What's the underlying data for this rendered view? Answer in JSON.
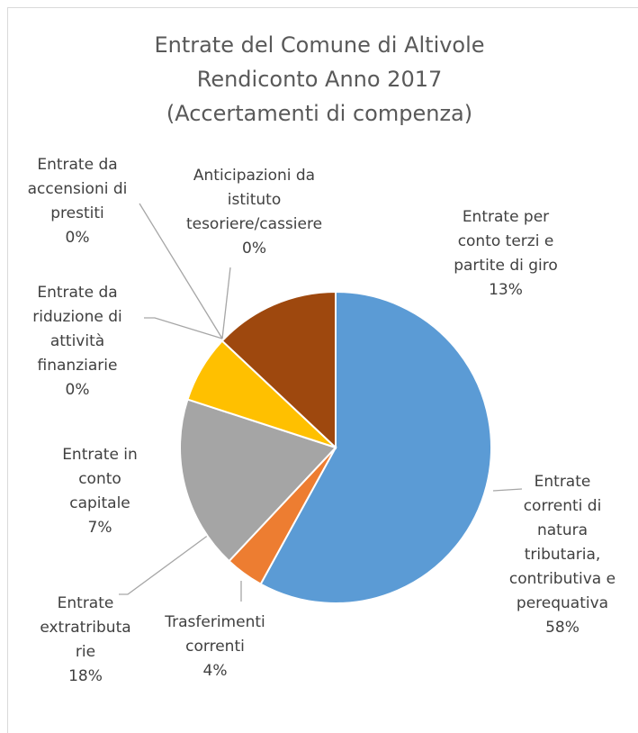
{
  "chart_data": {
    "type": "pie",
    "title": [
      "Entrate del Comune di Altivole",
      "Rendiconto Anno 2017",
      "(Accertamenti di compenza)"
    ],
    "categories": [
      "Entrate correnti di natura tributaria, contributiva e perequativa",
      "Trasferimenti correnti",
      "Entrate extratributarie",
      "Entrate in conto capitale",
      "Entrate da riduzione di attività finanziarie",
      "Entrate da accensioni di prestiti",
      "Anticipazioni da istituto tesoriere/cassiere",
      "Entrate per conto terzi e partite di giro"
    ],
    "values": [
      58,
      4,
      18,
      7,
      0,
      0,
      0,
      13
    ],
    "value_labels": [
      "58%",
      "4%",
      "18%",
      "7%",
      "0%",
      "0%",
      "0%",
      "13%"
    ],
    "colors": [
      "#5b9bd5",
      "#ed7d31",
      "#a5a5a5",
      "#ffc000",
      "#4472c4",
      "#70ad47",
      "#264478",
      "#9e480e"
    ]
  }
}
